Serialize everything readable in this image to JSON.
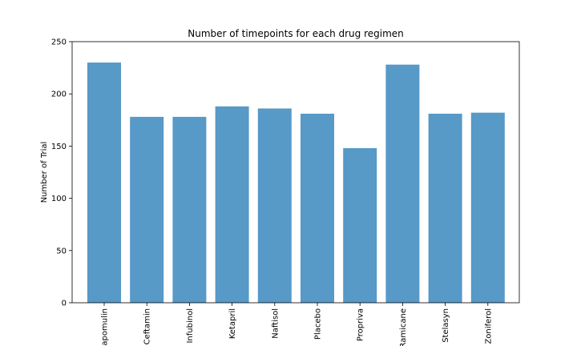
{
  "chart_data": {
    "type": "bar",
    "title": "Number of timepoints for each drug regimen",
    "xlabel": "",
    "ylabel": "Number of Trial",
    "categories": [
      "Capomulin",
      "Ceftamin",
      "Infubinol",
      "Ketapril",
      "Naftisol",
      "Placebo",
      "Propriva",
      "Ramicane",
      "Stelasyn",
      "Zoniferol"
    ],
    "values": [
      230,
      178,
      178,
      188,
      186,
      181,
      148,
      228,
      181,
      182
    ],
    "ylim": [
      0,
      250
    ],
    "yticks": [
      0,
      50,
      100,
      150,
      200,
      250
    ],
    "bar_color": "#5799c7",
    "grid": false,
    "legend": "none"
  }
}
